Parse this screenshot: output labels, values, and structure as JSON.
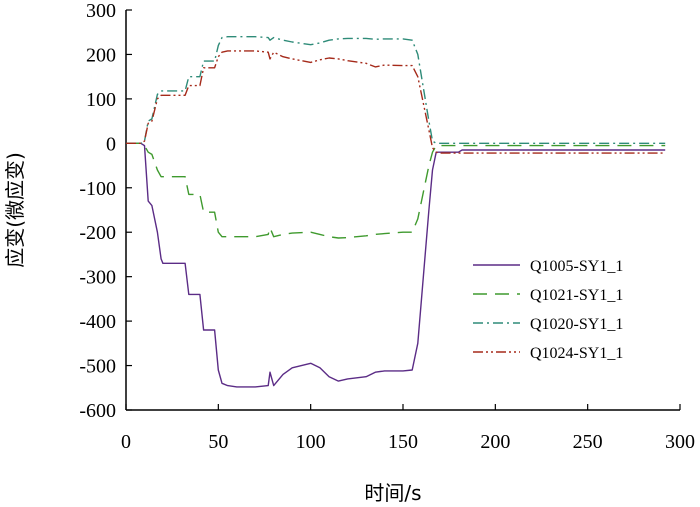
{
  "chart_data": {
    "type": "line",
    "title": "",
    "xlabel": "时间/s",
    "ylabel": "应变(微应变)",
    "xlim": [
      0,
      300
    ],
    "ylim": [
      -600,
      300
    ],
    "xticks": [
      0,
      50,
      100,
      150,
      200,
      250,
      300
    ],
    "yticks": [
      300,
      200,
      100,
      0,
      -100,
      -200,
      -300,
      -400,
      -500,
      -600
    ],
    "grid": false,
    "legend_position": "lower-right",
    "series": [
      {
        "name": "Q1005-SY1_1",
        "color": "#5b2c86",
        "dash": "solid",
        "x": [
          0,
          8,
          10,
          12,
          14,
          17,
          19,
          20,
          32,
          34,
          40,
          42,
          48,
          50,
          52,
          55,
          60,
          70,
          77,
          78,
          80,
          85,
          90,
          100,
          105,
          110,
          115,
          120,
          130,
          135,
          140,
          150,
          155,
          158,
          160,
          162,
          164,
          166,
          168,
          170,
          180,
          182,
          200,
          250,
          292
        ],
        "y": [
          0,
          0,
          -5,
          -130,
          -140,
          -200,
          -260,
          -270,
          -270,
          -340,
          -340,
          -420,
          -420,
          -510,
          -540,
          -545,
          -548,
          -548,
          -545,
          -515,
          -545,
          -520,
          -505,
          -495,
          -505,
          -525,
          -535,
          -530,
          -525,
          -515,
          -512,
          -512,
          -510,
          -450,
          -350,
          -250,
          -150,
          -60,
          -20,
          -20,
          -20,
          -15,
          -15,
          -15,
          -15
        ]
      },
      {
        "name": "Q1021-SY1_1",
        "color": "#3f9a2e",
        "dash": "14 8",
        "x": [
          0,
          8,
          10,
          12,
          14,
          17,
          19,
          20,
          32,
          34,
          40,
          42,
          48,
          50,
          52,
          55,
          60,
          70,
          77,
          78,
          80,
          85,
          90,
          100,
          105,
          110,
          115,
          120,
          130,
          135,
          140,
          150,
          155,
          158,
          160,
          162,
          164,
          166,
          168,
          170,
          180,
          200,
          250,
          292
        ],
        "y": [
          0,
          0,
          -5,
          -20,
          -25,
          -60,
          -75,
          -75,
          -75,
          -115,
          -115,
          -155,
          -155,
          -200,
          -210,
          -210,
          -210,
          -210,
          -205,
          -190,
          -210,
          -205,
          -202,
          -200,
          -205,
          -210,
          -213,
          -212,
          -208,
          -205,
          -203,
          -200,
          -200,
          -170,
          -130,
          -90,
          -50,
          -20,
          -5,
          -5,
          -5,
          -5,
          -5,
          -5
        ]
      },
      {
        "name": "Q1020-SY1_1",
        "color": "#2e8b78",
        "dash": "10 4 2 4",
        "x": [
          0,
          8,
          10,
          12,
          14,
          17,
          19,
          20,
          32,
          34,
          40,
          42,
          48,
          50,
          52,
          55,
          60,
          70,
          77,
          78,
          80,
          85,
          90,
          100,
          105,
          110,
          115,
          120,
          130,
          135,
          140,
          150,
          155,
          158,
          160,
          162,
          164,
          166,
          168,
          170,
          180,
          200,
          250,
          292
        ],
        "y": [
          0,
          0,
          5,
          50,
          55,
          110,
          118,
          118,
          118,
          150,
          150,
          185,
          185,
          220,
          238,
          240,
          240,
          240,
          238,
          232,
          238,
          232,
          228,
          222,
          226,
          232,
          235,
          236,
          236,
          234,
          235,
          235,
          232,
          200,
          150,
          100,
          50,
          5,
          0,
          0,
          0,
          0,
          0,
          0
        ]
      },
      {
        "name": "Q1024-SY1_1",
        "color": "#a52a1a",
        "dash": "10 3 2 3 2 3",
        "x": [
          0,
          8,
          10,
          12,
          14,
          17,
          19,
          20,
          32,
          34,
          40,
          42,
          48,
          50,
          52,
          55,
          60,
          70,
          77,
          78,
          80,
          85,
          90,
          100,
          105,
          110,
          115,
          120,
          130,
          135,
          140,
          150,
          155,
          158,
          160,
          162,
          164,
          166,
          168,
          170,
          180,
          200,
          250,
          292
        ],
        "y": [
          0,
          0,
          5,
          45,
          50,
          100,
          108,
          108,
          108,
          130,
          130,
          170,
          170,
          195,
          205,
          208,
          208,
          208,
          205,
          190,
          205,
          195,
          190,
          182,
          188,
          192,
          190,
          186,
          180,
          172,
          176,
          175,
          175,
          150,
          110,
          70,
          30,
          -10,
          -20,
          -22,
          -22,
          -22,
          -22,
          -22
        ]
      }
    ]
  }
}
